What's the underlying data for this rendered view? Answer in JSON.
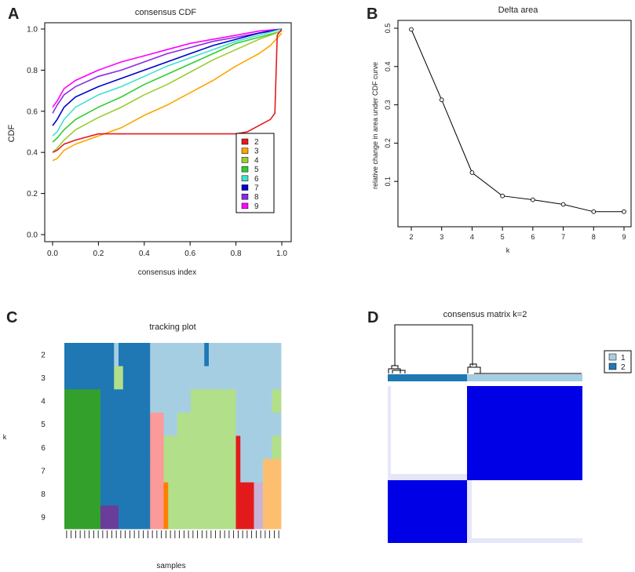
{
  "panel_labels": [
    "A",
    "B",
    "C",
    "D"
  ],
  "chart_data": [
    {
      "id": "A",
      "type": "line",
      "title": "consensus CDF",
      "xlabel": "consensus index",
      "ylabel": "CDF",
      "xlim": [
        0,
        1
      ],
      "ylim": [
        0,
        1
      ],
      "xticks": [
        "0.0",
        "0.2",
        "0.4",
        "0.6",
        "0.8",
        "1.0"
      ],
      "yticks": [
        "0.0",
        "0.2",
        "0.4",
        "0.6",
        "0.8",
        "1.0"
      ],
      "legend_position": "right",
      "series": [
        {
          "name": "2",
          "color": "#e41a1c",
          "x": [
            0,
            0.02,
            0.05,
            0.1,
            0.2,
            0.3,
            0.4,
            0.5,
            0.6,
            0.7,
            0.8,
            0.85,
            0.9,
            0.95,
            0.97,
            0.98,
            1.0
          ],
          "y": [
            0.4,
            0.41,
            0.44,
            0.46,
            0.49,
            0.49,
            0.49,
            0.49,
            0.49,
            0.49,
            0.49,
            0.5,
            0.53,
            0.56,
            0.59,
            0.97,
            1.0
          ]
        },
        {
          "name": "3",
          "color": "#ffa500",
          "x": [
            0,
            0.02,
            0.05,
            0.1,
            0.2,
            0.3,
            0.4,
            0.5,
            0.6,
            0.7,
            0.8,
            0.9,
            0.95,
            1.0
          ],
          "y": [
            0.36,
            0.37,
            0.41,
            0.44,
            0.48,
            0.52,
            0.58,
            0.63,
            0.69,
            0.75,
            0.82,
            0.88,
            0.92,
            0.98
          ]
        },
        {
          "name": "4",
          "color": "#9acd32",
          "x": [
            0,
            0.02,
            0.05,
            0.1,
            0.2,
            0.3,
            0.4,
            0.5,
            0.6,
            0.7,
            0.8,
            0.9,
            1.0
          ],
          "y": [
            0.4,
            0.42,
            0.46,
            0.51,
            0.57,
            0.62,
            0.68,
            0.73,
            0.79,
            0.85,
            0.9,
            0.95,
            0.99
          ]
        },
        {
          "name": "5",
          "color": "#32cd32",
          "x": [
            0,
            0.02,
            0.05,
            0.1,
            0.2,
            0.3,
            0.4,
            0.5,
            0.6,
            0.7,
            0.8,
            0.9,
            1.0
          ],
          "y": [
            0.45,
            0.47,
            0.51,
            0.56,
            0.62,
            0.67,
            0.73,
            0.78,
            0.83,
            0.88,
            0.93,
            0.96,
            0.99
          ]
        },
        {
          "name": "6",
          "color": "#40e0d0",
          "x": [
            0,
            0.02,
            0.05,
            0.1,
            0.2,
            0.3,
            0.4,
            0.5,
            0.6,
            0.7,
            0.8,
            0.9,
            1.0
          ],
          "y": [
            0.48,
            0.5,
            0.56,
            0.62,
            0.68,
            0.72,
            0.77,
            0.82,
            0.86,
            0.9,
            0.94,
            0.97,
            1.0
          ]
        },
        {
          "name": "7",
          "color": "#0000cd",
          "x": [
            0,
            0.02,
            0.05,
            0.1,
            0.2,
            0.3,
            0.4,
            0.5,
            0.6,
            0.7,
            0.8,
            0.9,
            1.0
          ],
          "y": [
            0.53,
            0.56,
            0.62,
            0.67,
            0.72,
            0.76,
            0.8,
            0.84,
            0.88,
            0.92,
            0.95,
            0.98,
            1.0
          ]
        },
        {
          "name": "8",
          "color": "#8a2be2",
          "x": [
            0,
            0.02,
            0.05,
            0.1,
            0.2,
            0.3,
            0.4,
            0.5,
            0.6,
            0.7,
            0.8,
            0.9,
            1.0
          ],
          "y": [
            0.59,
            0.63,
            0.68,
            0.72,
            0.77,
            0.8,
            0.84,
            0.88,
            0.91,
            0.94,
            0.96,
            0.98,
            1.0
          ]
        },
        {
          "name": "9",
          "color": "#ff00ff",
          "x": [
            0,
            0.02,
            0.05,
            0.1,
            0.2,
            0.3,
            0.4,
            0.5,
            0.6,
            0.7,
            0.8,
            0.9,
            1.0
          ],
          "y": [
            0.62,
            0.65,
            0.71,
            0.75,
            0.8,
            0.84,
            0.87,
            0.9,
            0.93,
            0.95,
            0.97,
            0.99,
            1.0
          ]
        }
      ]
    },
    {
      "id": "B",
      "type": "line",
      "title": "Delta area",
      "xlabel": "k",
      "ylabel": "relative change in area under CDF curve",
      "xlim": [
        2,
        9
      ],
      "ylim": [
        0,
        0.5
      ],
      "xticks": [
        "2",
        "3",
        "4",
        "5",
        "6",
        "7",
        "8",
        "9"
      ],
      "yticks": [
        "0.1",
        "0.2",
        "0.3",
        "0.4",
        "0.5"
      ],
      "series": [
        {
          "name": "delta",
          "color": "#000000",
          "x": [
            2,
            3,
            4,
            5,
            6,
            7,
            8,
            9
          ],
          "y": [
            0.497,
            0.313,
            0.123,
            0.062,
            0.052,
            0.04,
            0.021,
            0.021
          ]
        }
      ]
    },
    {
      "id": "C",
      "type": "heatmap",
      "title": "tracking plot",
      "xlabel": "samples",
      "ylabel": "k",
      "row_labels": [
        "2",
        "3",
        "4",
        "5",
        "6",
        "7",
        "8",
        "9"
      ],
      "n_samples": 48,
      "palette": {
        "1": "#1f78b4",
        "2": "#a6cee3",
        "3": "#b2df8a",
        "4": "#33a02c",
        "5": "#fb9a99",
        "6": "#e31a1c",
        "7": "#fdbf6f",
        "8": "#ff7f00",
        "9": "#6a3d9a",
        "10": "#cab2d6"
      },
      "segments": [
        [
          [
            0,
            11,
            "1"
          ],
          [
            11,
            12,
            "2"
          ],
          [
            12,
            19,
            "1"
          ],
          [
            19,
            31,
            "2"
          ],
          [
            31,
            32,
            "1"
          ],
          [
            32,
            48,
            "2"
          ]
        ],
        [
          [
            0,
            11,
            "1"
          ],
          [
            11,
            13,
            "3"
          ],
          [
            13,
            19,
            "1"
          ],
          [
            19,
            48,
            "2"
          ]
        ],
        [
          [
            0,
            8,
            "4"
          ],
          [
            8,
            19,
            "1"
          ],
          [
            19,
            28,
            "2"
          ],
          [
            28,
            38,
            "3"
          ],
          [
            38,
            46,
            "2"
          ],
          [
            46,
            48,
            "3"
          ]
        ],
        [
          [
            0,
            8,
            "4"
          ],
          [
            8,
            19,
            "1"
          ],
          [
            19,
            22,
            "5"
          ],
          [
            22,
            25,
            "2"
          ],
          [
            25,
            38,
            "3"
          ],
          [
            38,
            48,
            "2"
          ]
        ],
        [
          [
            0,
            8,
            "4"
          ],
          [
            8,
            19,
            "1"
          ],
          [
            19,
            22,
            "5"
          ],
          [
            22,
            38,
            "3"
          ],
          [
            38,
            39,
            "6"
          ],
          [
            39,
            46,
            "2"
          ],
          [
            46,
            48,
            "3"
          ]
        ],
        [
          [
            0,
            8,
            "4"
          ],
          [
            8,
            19,
            "1"
          ],
          [
            19,
            22,
            "5"
          ],
          [
            22,
            38,
            "3"
          ],
          [
            38,
            39,
            "6"
          ],
          [
            39,
            44,
            "2"
          ],
          [
            44,
            48,
            "7"
          ]
        ],
        [
          [
            0,
            8,
            "4"
          ],
          [
            8,
            19,
            "1"
          ],
          [
            19,
            22,
            "5"
          ],
          [
            22,
            23,
            "8"
          ],
          [
            23,
            38,
            "3"
          ],
          [
            38,
            42,
            "6"
          ],
          [
            42,
            44,
            "10"
          ],
          [
            44,
            48,
            "7"
          ]
        ],
        [
          [
            0,
            8,
            "4"
          ],
          [
            8,
            12,
            "9"
          ],
          [
            12,
            19,
            "1"
          ],
          [
            19,
            22,
            "5"
          ],
          [
            22,
            23,
            "8"
          ],
          [
            23,
            38,
            "3"
          ],
          [
            38,
            42,
            "6"
          ],
          [
            42,
            44,
            "10"
          ],
          [
            44,
            48,
            "7"
          ]
        ]
      ]
    },
    {
      "id": "D",
      "type": "heatmap",
      "title": "consensus matrix k=2",
      "legend": [
        {
          "label": "1",
          "color": "#a6cee3"
        },
        {
          "label": "2",
          "color": "#1f78b4"
        }
      ],
      "cluster_sizes": [
        0.41,
        0.59
      ],
      "high_color": "#0000e6",
      "low_color": "#ffffff"
    }
  ]
}
